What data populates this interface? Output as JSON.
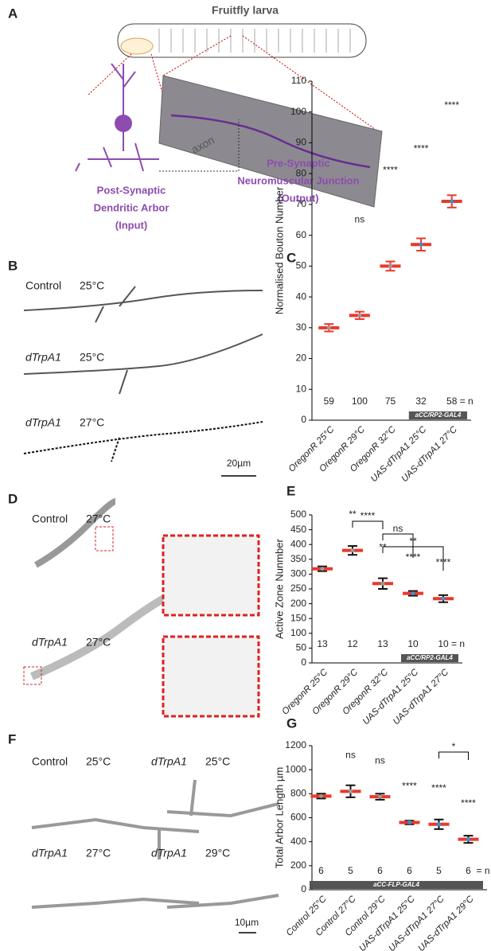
{
  "panels": {
    "a": "A",
    "b": "B",
    "c": "C",
    "d": "D",
    "e": "E",
    "f": "F",
    "g": "G"
  },
  "schematic": {
    "title": "Fruitfly larva",
    "axon": "axon",
    "post": [
      "Post-Synaptic",
      "Dendritic Arbor",
      "(Input)"
    ],
    "pre": [
      "Pre-Synaptic",
      "Neuromuscular Junction",
      "(Output)"
    ]
  },
  "image_b": {
    "labels": [
      [
        "Control",
        "25°C"
      ],
      [
        "dTrpA1",
        "25°C"
      ],
      [
        "dTrpA1",
        "27°C"
      ]
    ],
    "scale": "20µm"
  },
  "image_d": {
    "labels": [
      [
        "Control",
        "27°C"
      ],
      [
        "dTrpA1",
        "27°C"
      ]
    ]
  },
  "image_f": {
    "labels": [
      [
        "Control",
        "25°C"
      ],
      [
        "dTrpA1",
        "25°C"
      ],
      [
        "dTrpA1",
        "27°C"
      ],
      [
        "dTrpA1",
        "29°C"
      ]
    ],
    "scale": "10µm"
  },
  "chart_data": [
    {
      "type": "dotplot",
      "ylabel": "Normalised Bouton Number",
      "categories": [
        "OregonR 25°C",
        "OregonR 29°C",
        "OregonR 32°C",
        "UAS-dTrpA1 25°C",
        "UAS-dTrpA1 27°C"
      ],
      "values": [
        30,
        34,
        50,
        57,
        71
      ],
      "errors": [
        1.2,
        1.2,
        1.5,
        2,
        2
      ],
      "colors": [
        "#999999",
        "#999999",
        "#999999",
        "#3b8fd0",
        "#3b8fd0"
      ],
      "mean_color": "#e8392b",
      "error_color": "#e8392b",
      "significance": [
        null,
        "ns",
        "****",
        "****",
        "****"
      ],
      "n": [
        59,
        100,
        75,
        32,
        58
      ],
      "n_suffix": "= n",
      "group": {
        "label": "aCC/RP2-GAL4",
        "span": [
          3,
          4
        ]
      },
      "ylim": [
        0,
        110
      ],
      "yticks": [
        0,
        10,
        20,
        30,
        40,
        50,
        60,
        70,
        80,
        90,
        100,
        110
      ],
      "brackets": []
    },
    {
      "type": "dotplot",
      "ylabel": "Active Zone Nunmber",
      "categories": [
        "OregonR 25°C",
        "OregonR 29°C",
        "OregonR 32°C",
        "UAS-dTrpA1 25°C",
        "UAS-dTrpA1 27°C"
      ],
      "values": [
        318,
        380,
        268,
        235,
        217
      ],
      "errors": [
        8,
        15,
        18,
        8,
        12
      ],
      "colors": [
        "#999999",
        "#999999",
        "#999999",
        "#3b8fd0",
        "#3b8fd0"
      ],
      "mean_color": "#e8392b",
      "error_color": "#111111",
      "significance": [
        null,
        "**",
        "**",
        "****",
        "****"
      ],
      "n": [
        13,
        12,
        13,
        10,
        10
      ],
      "n_suffix": "= n",
      "group": {
        "label": "aCC/RP2-GAL4",
        "span": [
          3,
          4
        ]
      },
      "ylim": [
        0,
        500
      ],
      "yticks": [
        0,
        50,
        100,
        150,
        200,
        250,
        300,
        350,
        400,
        450,
        500
      ],
      "brackets": [
        {
          "pair": [
            1,
            2
          ],
          "label": "****"
        },
        {
          "pair": [
            2,
            3
          ],
          "label": "ns"
        },
        {
          "pair": [
            2,
            4
          ],
          "label": "**"
        }
      ]
    },
    {
      "type": "dotplot",
      "ylabel": "Total Arbor Length µm",
      "categories": [
        "Control 25°C",
        "Control 27°C",
        "Control 29°C",
        "UAS-dTrpA1 25°C",
        "UAS-dTrpA1 27°C",
        "UAS-dTrpA1 29°C"
      ],
      "values": [
        780,
        820,
        775,
        560,
        545,
        420
      ],
      "errors": [
        20,
        50,
        25,
        15,
        40,
        30
      ],
      "colors": [
        "#999999",
        "#999999",
        "#999999",
        "#3b8fd0",
        "#3b8fd0",
        "#3b8fd0"
      ],
      "mean_color": "#e8392b",
      "error_color": "#111111",
      "significance": [
        null,
        "ns",
        "ns",
        "****",
        "****",
        "****"
      ],
      "n": [
        6,
        5,
        6,
        6,
        5,
        6
      ],
      "n_suffix": "= n",
      "group": {
        "label": "aCC-FLP-GAL4",
        "span": [
          0,
          5
        ]
      },
      "ylim": [
        0,
        1200
      ],
      "yticks": [
        0,
        200,
        400,
        600,
        800,
        1000,
        1200
      ],
      "brackets": [
        {
          "pair": [
            4,
            5
          ],
          "label": "*"
        }
      ]
    }
  ]
}
